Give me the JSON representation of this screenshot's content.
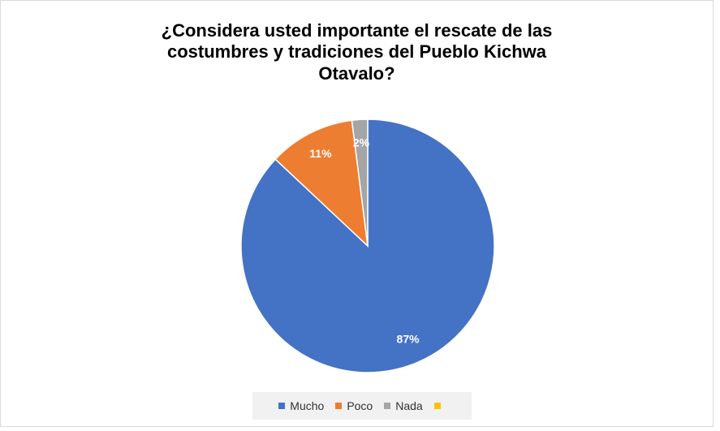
{
  "chart_data": {
    "type": "pie",
    "title": "¿Considera usted importante el rescate de las costumbres y tradiciones del Pueblo Kichwa Otavalo?",
    "title_lines": [
      "¿Considera usted importante el rescate de las",
      "costumbres y tradiciones del Pueblo Kichwa",
      "Otavalo?"
    ],
    "categories": [
      "Mucho",
      "Poco",
      "Nada",
      ""
    ],
    "values": [
      87,
      11,
      2,
      0
    ],
    "labels": [
      "87%",
      "11%",
      "2%",
      ""
    ],
    "colors": [
      "#4472c4",
      "#ed7d31",
      "#a5a5a5",
      "#ffc000"
    ],
    "legend": {
      "position": "bottom"
    }
  }
}
